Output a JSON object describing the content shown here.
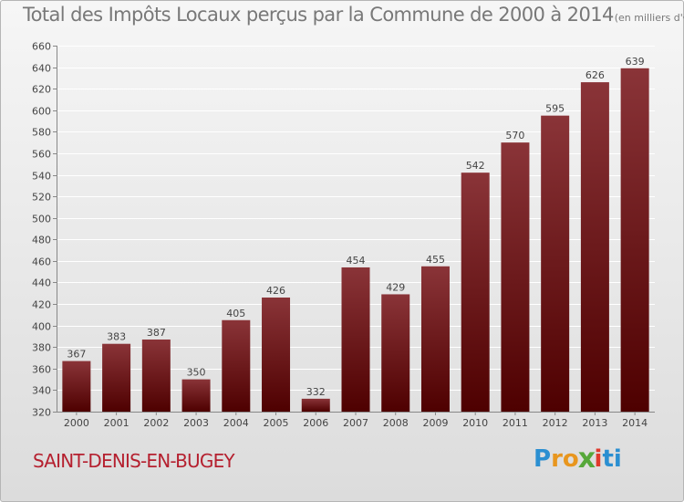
{
  "title": "Total des Impôts Locaux perçus par la Commune de 2000 à 2014",
  "subtitle": "(en milliers d'€)",
  "commune": "SAINT-DENIS-EN-BUGEY",
  "logo": {
    "letters": [
      "P",
      "r",
      "o",
      "x",
      "i",
      "t",
      "i"
    ],
    "colors": [
      "#2b8fd1",
      "#e8961e",
      "#e8961e",
      "#56a83a",
      "#e03a2c",
      "#2b8fd1",
      "#2b8fd1"
    ]
  },
  "colors": {
    "bar_top": "#8a3438",
    "bar_bottom": "#4e0000",
    "label": "#444444",
    "axis": "#888888",
    "grid": "#ffffff"
  },
  "chart_data": {
    "type": "bar",
    "title": "Total des Impôts Locaux perçus par la Commune de 2000 à 2014",
    "categories": [
      "2000",
      "2001",
      "2002",
      "2003",
      "2004",
      "2005",
      "2006",
      "2007",
      "2008",
      "2009",
      "2010",
      "2011",
      "2012",
      "2013",
      "2014"
    ],
    "values": [
      367,
      383,
      387,
      350,
      405,
      426,
      332,
      454,
      429,
      455,
      542,
      570,
      595,
      626,
      639
    ],
    "ylim": [
      320,
      660
    ],
    "yticks": [
      320,
      340,
      360,
      380,
      400,
      420,
      440,
      460,
      480,
      500,
      520,
      540,
      560,
      580,
      600,
      620,
      640,
      660
    ],
    "grid": true,
    "xlabel": "",
    "ylabel": ""
  }
}
